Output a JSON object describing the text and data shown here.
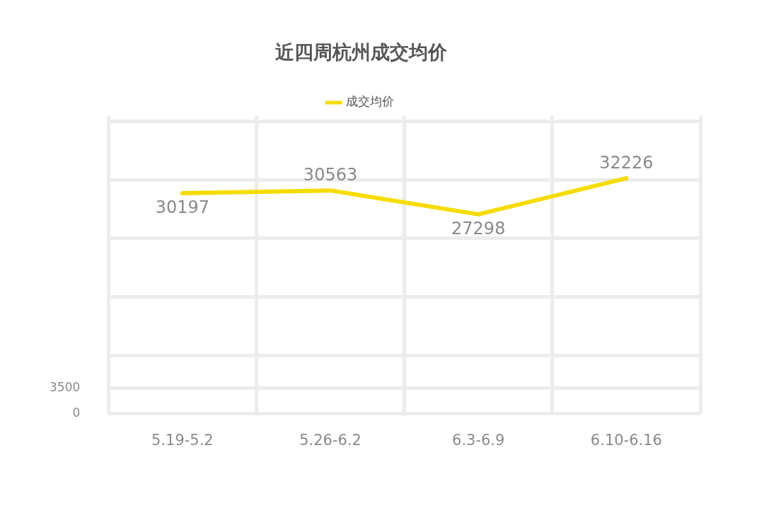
{
  "chart_data": {
    "type": "line",
    "title": "近四周杭州成交均价",
    "categories": [
      "5.19-5.2",
      "5.26-6.2",
      "6.3-6.9",
      "6.10-6.16"
    ],
    "series": [
      {
        "name": "成交均价",
        "color": "#f5dc00",
        "values": [
          30197,
          30563,
          27298,
          32226
        ]
      }
    ],
    "ylim": [
      0,
      40800
    ],
    "yticks": [
      0,
      3500,
      {
        "value": 8000,
        "label": null
      },
      {
        "value": 16000,
        "label": null
      },
      {
        "value": 24000,
        "label": null
      },
      {
        "value": 32000,
        "label": null
      },
      {
        "value": 40000,
        "label": null
      }
    ],
    "grid": true,
    "legend": "top",
    "marker": "none",
    "data_labels": true
  }
}
